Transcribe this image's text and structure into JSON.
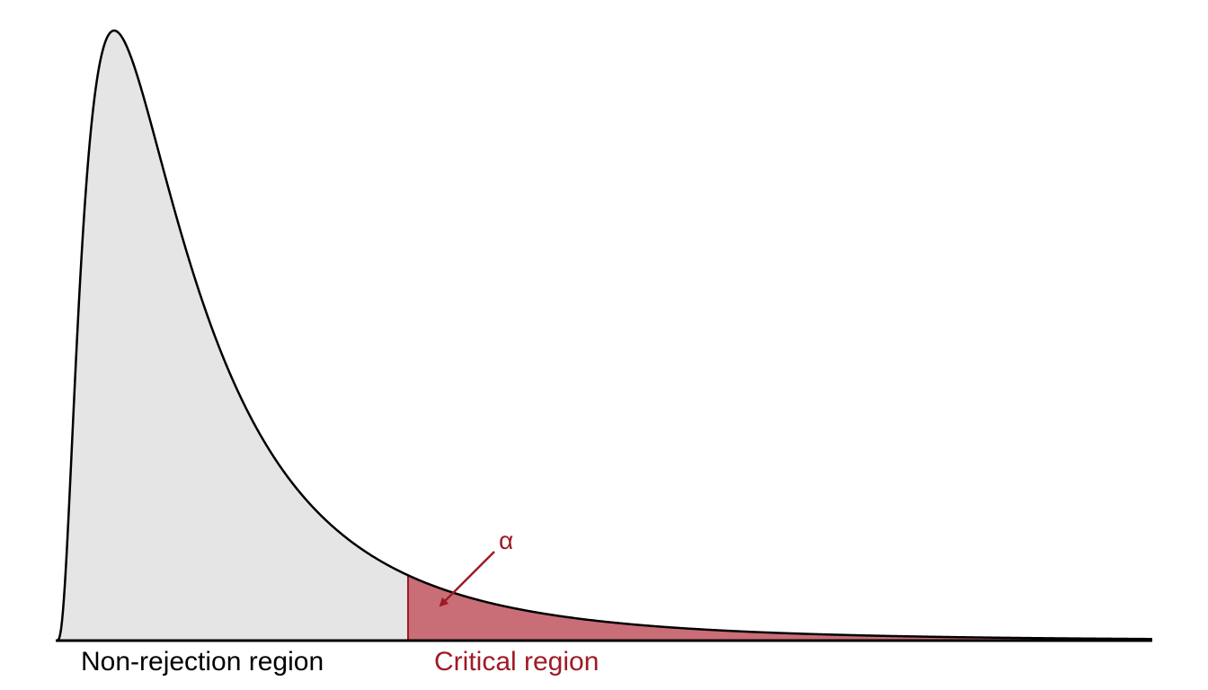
{
  "diagram": {
    "distribution": "right-skewed density (F-like)",
    "regions": {
      "non_rejection": {
        "label": "Non-rejection region",
        "fill_color": "#e5e5e5",
        "text_color": "#000000"
      },
      "critical": {
        "label": "Critical region",
        "fill_color": "#c96d77",
        "text_color": "#9e1b26"
      }
    },
    "alpha_annotation": {
      "symbol": "α",
      "color": "#9e1b26",
      "pointer": "arrow-to-tail-start"
    },
    "curve_color": "#000000",
    "baseline_color": "#000000"
  }
}
